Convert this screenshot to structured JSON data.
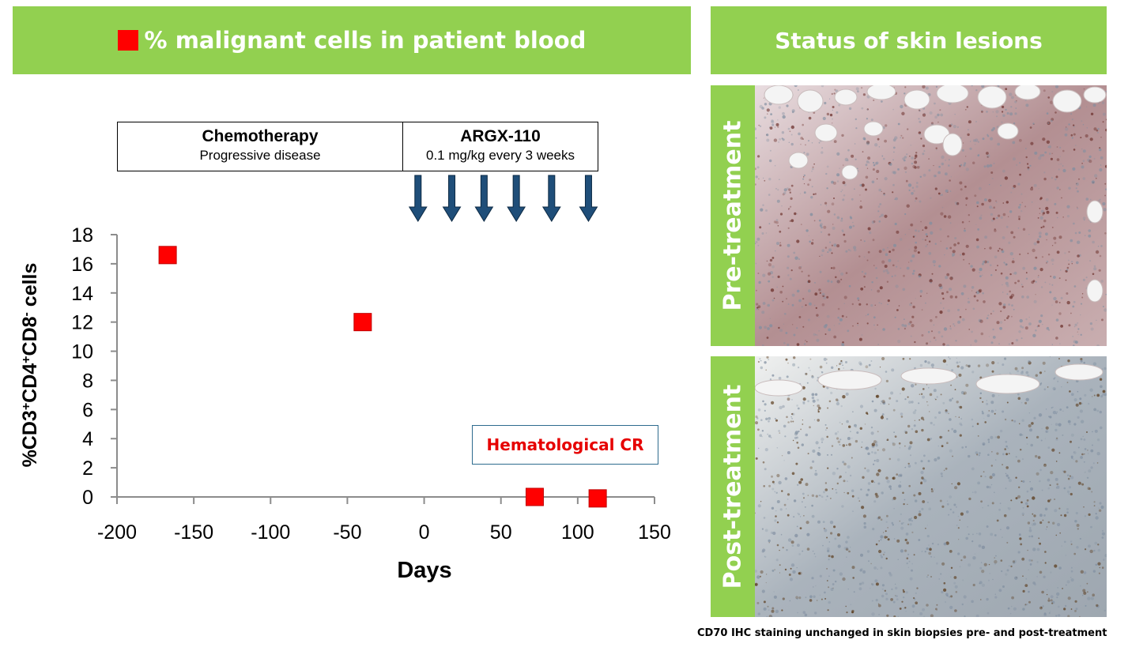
{
  "left_banner": {
    "title": "% malignant cells in patient blood",
    "marker_color": "#ff0000"
  },
  "right_banner": {
    "title": "Status of skin lesions"
  },
  "panels": {
    "pre_label": "Pre-treatment",
    "post_label": "Post-treatment"
  },
  "caption": "CD70 IHC staining unchanged in skin biopsies pre- and post-treatment",
  "treatments": {
    "chemo": {
      "title": "Chemotherapy",
      "subtitle": "Progressive disease"
    },
    "argx": {
      "title": "ARGX-110",
      "subtitle": "0.1 mg/kg every 3 weeks"
    }
  },
  "annotation": "Hematological CR",
  "colors": {
    "banner": "#92d050",
    "marker": "#ff0000",
    "arrow": "#1f4e79",
    "annotation": "#e60000"
  },
  "chart_data": {
    "type": "scatter",
    "xlabel": "Days",
    "ylabel": "%CD3+CD4+CD8- cells",
    "xlim": [
      -200,
      150
    ],
    "ylim": [
      0,
      18
    ],
    "xticks": [
      -200,
      -150,
      -100,
      -50,
      0,
      50,
      100,
      150
    ],
    "yticks": [
      0,
      2,
      4,
      6,
      8,
      10,
      12,
      14,
      16,
      18
    ],
    "points": [
      {
        "x": -167,
        "y": 16.6
      },
      {
        "x": -40,
        "y": 12.0
      },
      {
        "x": 72,
        "y": 0
      },
      {
        "x": 113,
        "y": -0.1
      }
    ],
    "dosing_days": [
      -4,
      18,
      39,
      60,
      83,
      107
    ],
    "grid": false
  }
}
